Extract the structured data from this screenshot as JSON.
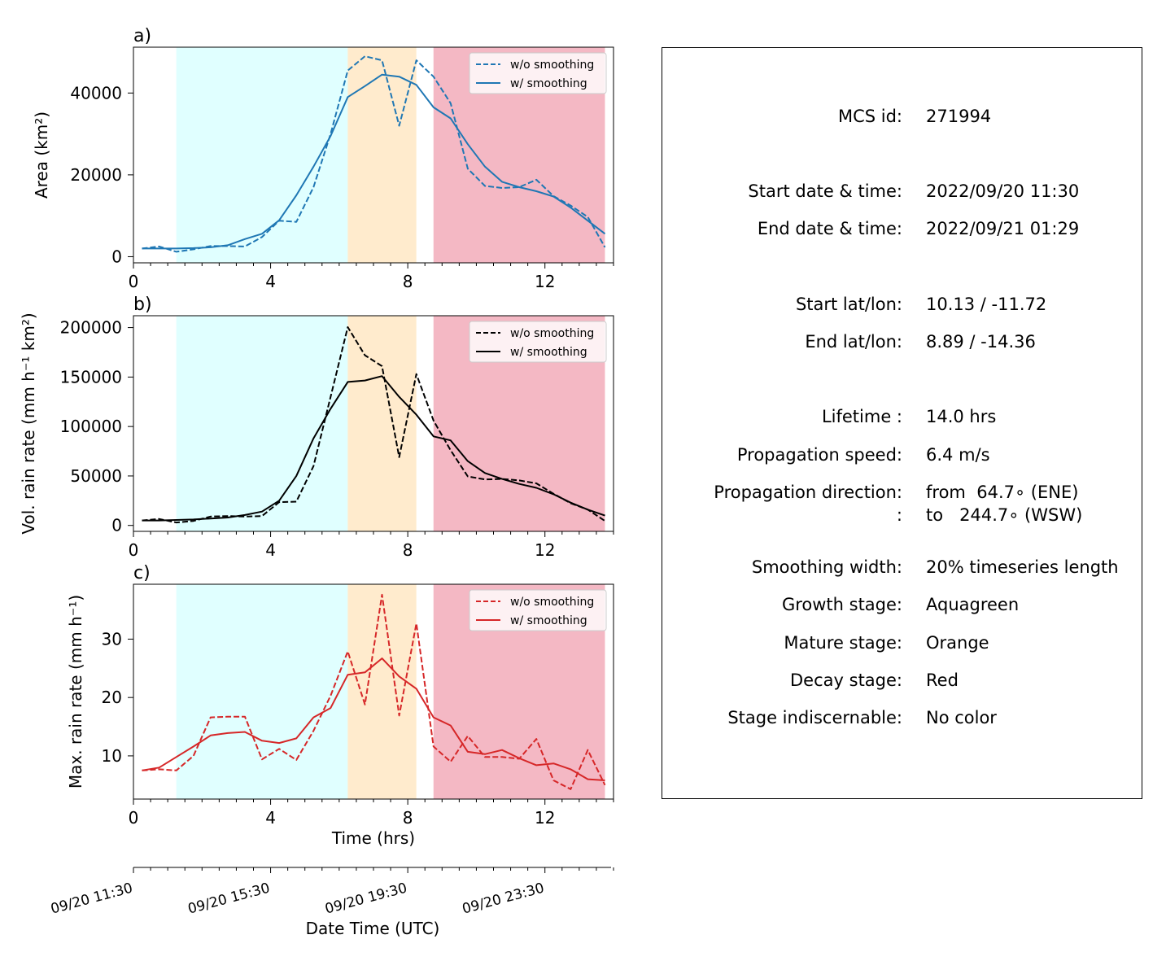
{
  "chart_data": [
    {
      "type": "line",
      "panel_label": "a)",
      "title": "",
      "xlabel": "",
      "ylabel": "Area  (km²)",
      "xlim": [
        0,
        14
      ],
      "ylim": [
        -1500,
        51200
      ],
      "xticks": [
        0,
        4,
        8,
        12
      ],
      "yticks": [
        0,
        20000,
        40000
      ],
      "legend_position": "top-right",
      "stage_bands": [
        {
          "name": "Growth stage",
          "color": "#e0ffff",
          "x": [
            1.25,
            6.25
          ]
        },
        {
          "name": "Mature stage",
          "color": "#ffebcd",
          "x": [
            6.25,
            8.25
          ]
        },
        {
          "name": "Decay stage",
          "color": "#f4b8c4",
          "x": [
            8.75,
            13.75
          ]
        }
      ],
      "x": [
        0.25,
        0.75,
        1.25,
        1.75,
        2.25,
        2.75,
        3.25,
        3.75,
        4.25,
        4.75,
        5.25,
        5.75,
        6.25,
        6.75,
        7.25,
        7.75,
        8.25,
        8.75,
        9.25,
        9.75,
        10.25,
        10.75,
        11.25,
        11.75,
        12.25,
        12.75,
        13.25,
        13.75
      ],
      "series": [
        {
          "name": "w/o smoothing",
          "color": "#1f77b4",
          "style": "dashed",
          "values": [
            2000,
            2500,
            1200,
            1800,
            2600,
            2600,
            2500,
            4800,
            8800,
            8500,
            17000,
            30000,
            45500,
            49000,
            48000,
            32000,
            48000,
            44000,
            37500,
            21500,
            17300,
            16800,
            17000,
            18800,
            14800,
            12500,
            9700,
            2300
          ]
        },
        {
          "name": "w/ smoothing",
          "color": "#1f77b4",
          "style": "solid",
          "values": [
            2000,
            2000,
            2000,
            2100,
            2300,
            2800,
            4300,
            5600,
            8900,
            15000,
            22000,
            29500,
            39000,
            41700,
            44500,
            44000,
            42000,
            36500,
            33800,
            27500,
            22000,
            18300,
            17000,
            16000,
            14700,
            12000,
            8800,
            5600
          ]
        }
      ]
    },
    {
      "type": "line",
      "panel_label": "b)",
      "title": "",
      "xlabel": "",
      "ylabel": "Vol. rain rate (mm h⁻¹ km²)",
      "xlim": [
        0,
        14
      ],
      "ylim": [
        -6000,
        212000
      ],
      "xticks": [
        0,
        4,
        8,
        12
      ],
      "yticks": [
        0,
        50000,
        100000,
        150000,
        200000
      ],
      "legend_position": "top-right",
      "stage_bands": [
        {
          "name": "Growth stage",
          "color": "#e0ffff",
          "x": [
            1.25,
            6.25
          ]
        },
        {
          "name": "Mature stage",
          "color": "#ffebcd",
          "x": [
            6.25,
            8.25
          ]
        },
        {
          "name": "Decay stage",
          "color": "#f4b8c4",
          "x": [
            8.75,
            13.75
          ]
        }
      ],
      "x": [
        0.25,
        0.75,
        1.25,
        1.75,
        2.25,
        2.75,
        3.25,
        3.75,
        4.25,
        4.75,
        5.25,
        5.75,
        6.25,
        6.75,
        7.25,
        7.75,
        8.25,
        8.75,
        9.25,
        9.75,
        10.25,
        10.75,
        11.25,
        11.75,
        12.25,
        12.75,
        13.25,
        13.75
      ],
      "series": [
        {
          "name": "w/o smoothing",
          "color": "#000000",
          "style": "dashed",
          "values": [
            5000,
            6500,
            3000,
            4500,
            9000,
            9500,
            9000,
            9500,
            23500,
            24000,
            60000,
            130000,
            200500,
            172000,
            161000,
            69000,
            153000,
            106000,
            76000,
            49500,
            46500,
            47000,
            45500,
            42500,
            32000,
            22500,
            16000,
            4500
          ]
        },
        {
          "name": "w/ smoothing",
          "color": "#000000",
          "style": "solid",
          "values": [
            5000,
            5000,
            5500,
            6000,
            7000,
            8000,
            10500,
            14000,
            25000,
            50000,
            88000,
            118000,
            145000,
            146500,
            151000,
            130000,
            112000,
            90000,
            86000,
            65000,
            53000,
            47000,
            42000,
            38000,
            31500,
            23000,
            16000,
            10000
          ]
        }
      ]
    },
    {
      "type": "line",
      "panel_label": "c)",
      "title": "",
      "xlabel": "Time (hrs)",
      "ylabel": "Max. rain rate  (mm h⁻¹)",
      "xlim": [
        0,
        14
      ],
      "ylim": [
        2.6,
        39.4
      ],
      "xticks": [
        0,
        4,
        8,
        12
      ],
      "yticks": [
        10,
        20,
        30
      ],
      "legend_position": "top-right",
      "stage_bands": [
        {
          "name": "Growth stage",
          "color": "#e0ffff",
          "x": [
            1.25,
            6.25
          ]
        },
        {
          "name": "Mature stage",
          "color": "#ffebcd",
          "x": [
            6.25,
            8.25
          ]
        },
        {
          "name": "Decay stage",
          "color": "#f4b8c4",
          "x": [
            8.75,
            13.75
          ]
        }
      ],
      "x": [
        0.25,
        0.75,
        1.25,
        1.75,
        2.25,
        2.75,
        3.25,
        3.75,
        4.25,
        4.75,
        5.25,
        5.75,
        6.25,
        6.75,
        7.25,
        7.75,
        8.25,
        8.75,
        9.25,
        9.75,
        10.25,
        10.75,
        11.25,
        11.75,
        12.25,
        12.75,
        13.25,
        13.75
      ],
      "series": [
        {
          "name": "w/o smoothing",
          "color": "#d62728",
          "style": "dashed",
          "values": [
            7.5,
            7.7,
            7.5,
            10.0,
            16.6,
            16.7,
            16.7,
            9.4,
            11.2,
            9.3,
            14.3,
            20.3,
            27.9,
            18.8,
            37.6,
            16.9,
            32.7,
            11.6,
            9.0,
            13.4,
            9.8,
            9.8,
            9.5,
            12.9,
            5.8,
            4.3,
            11.0,
            5.0
          ]
        },
        {
          "name": "w/ smoothing",
          "color": "#d62728",
          "style": "solid",
          "values": [
            7.5,
            8.0,
            9.8,
            11.6,
            13.5,
            13.9,
            14.1,
            12.6,
            12.2,
            13.0,
            16.6,
            18.2,
            23.9,
            24.3,
            26.7,
            23.6,
            21.5,
            16.6,
            15.2,
            10.7,
            10.3,
            11.0,
            9.6,
            8.4,
            8.7,
            7.7,
            6.0,
            5.8
          ]
        }
      ]
    },
    {
      "type": "line",
      "panel_label": "",
      "xlabel": "Date Time (UTC)",
      "xlim": [
        0,
        14
      ],
      "xticks": [
        0,
        4,
        8,
        12
      ],
      "tick_labels": [
        "09/20 11:30",
        "09/20 15:30",
        "09/20 19:30",
        "09/20 23:30"
      ]
    }
  ],
  "info_panel": {
    "rows": [
      {
        "label": "MCS id:",
        "value": "271994"
      },
      {
        "label": "Start date & time:",
        "value": "2022/09/20 11:30"
      },
      {
        "label": "End date & time:",
        "value": "2022/09/21 01:29"
      },
      {
        "label": "Start lat/lon:",
        "value": "10.13 / -11.72"
      },
      {
        "label": "End lat/lon:",
        "value": "8.89 / -14.36"
      },
      {
        "label": "Lifetime :",
        "value": "14.0 hrs"
      },
      {
        "label": "Propagation speed:",
        "value": "6.4 m/s"
      },
      {
        "label": "Propagation direction:",
        "value": "from  64.7∘ (ENE)"
      },
      {
        "label": ":",
        "value": "to   244.7∘ (WSW)"
      },
      {
        "label": "Smoothing width:",
        "value": "20% timeseries length"
      },
      {
        "label": "Growth stage:",
        "value": "Aquagreen"
      },
      {
        "label": "Mature stage:",
        "value": "Orange"
      },
      {
        "label": "Decay stage:",
        "value": "Red"
      },
      {
        "label": "Stage indiscernable:",
        "value": "No color"
      }
    ]
  }
}
